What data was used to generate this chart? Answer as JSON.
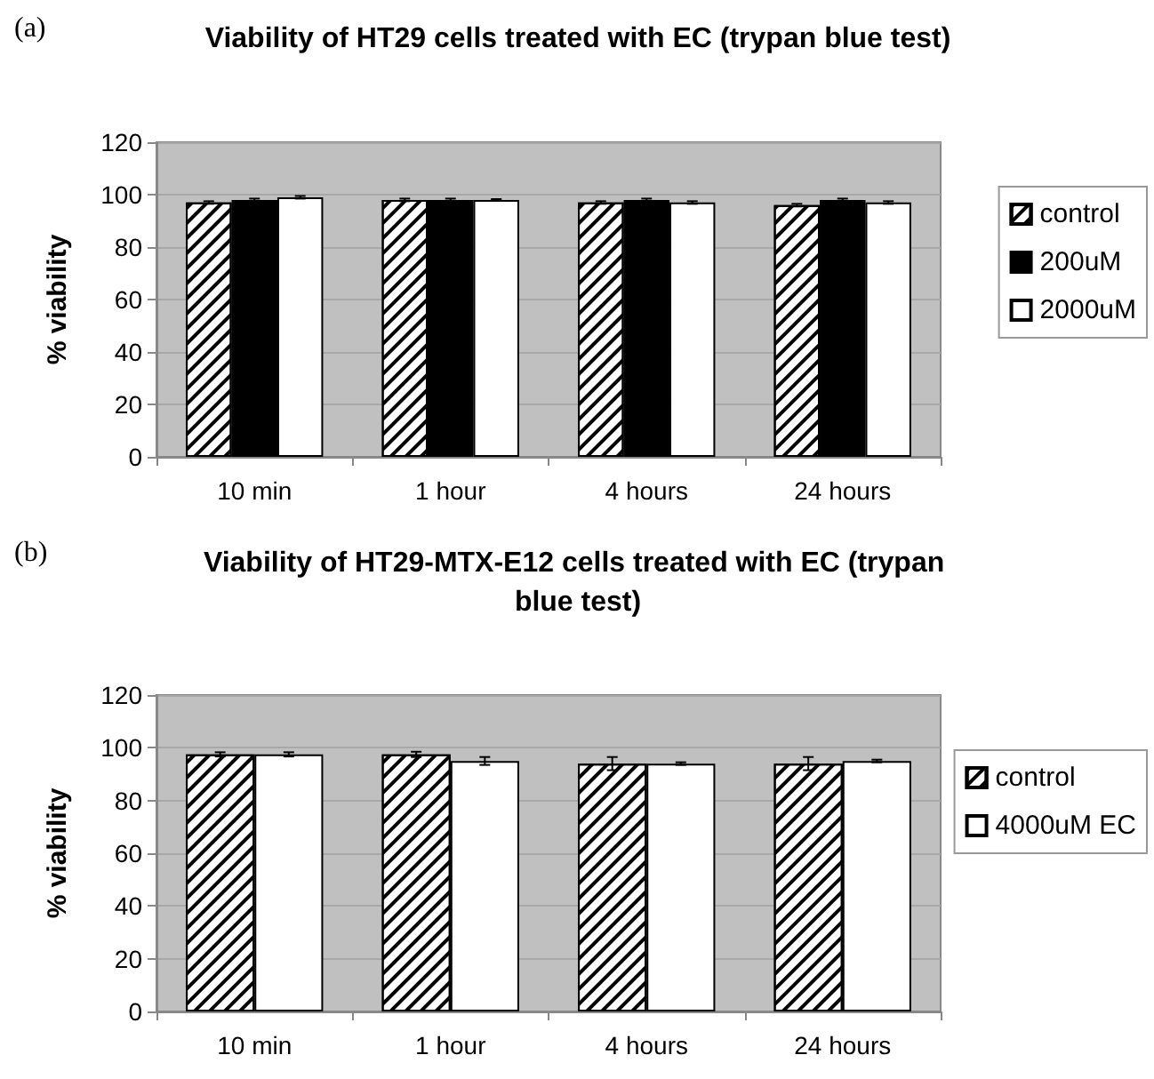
{
  "chart_data": [
    {
      "type": "bar",
      "title": "Viability of HT29 cells treated with EC (trypan blue test)",
      "annotations": [
        "(a)"
      ],
      "ylabel": "% viability",
      "categories": [
        "10 min",
        "1 hour",
        "4 hours",
        "24 hours"
      ],
      "series": [
        {
          "name": "control",
          "color": "#ffffff",
          "values": [
            97,
            98,
            97,
            96
          ],
          "errors": [
            0.5,
            0.5,
            0.5,
            0.5
          ]
        },
        {
          "name": "200uM",
          "color": "#000000",
          "values": [
            98,
            98,
            98,
            98
          ],
          "errors": [
            0.5,
            0.5,
            0.5,
            0.5
          ]
        },
        {
          "name": "2000uM",
          "color": "#ffffff",
          "values": [
            99,
            98,
            97,
            97
          ],
          "errors": [
            0.5,
            0.3,
            0.5,
            0.5
          ]
        }
      ],
      "ylim": [
        0,
        120
      ],
      "yticks": [
        0,
        20,
        40,
        60,
        80,
        100,
        120
      ],
      "grid": "y",
      "legend": "right"
    },
    {
      "type": "bar",
      "title": "Viability of HT29-MTX-E12 cells treated with EC (trypan blue test)",
      "annotations": [
        "(b)"
      ],
      "ylabel": "% viability",
      "categories": [
        "10 min",
        "1 hour",
        "4 hours",
        "24 hours"
      ],
      "series": [
        {
          "name": "control",
          "color": "#ffffff",
          "values": [
            97.5,
            97.5,
            94,
            94
          ],
          "errors": [
            0.8,
            1,
            2.5,
            2.5
          ]
        },
        {
          "name": "4000uM EC",
          "color": "#ffffff",
          "values": [
            97.5,
            95,
            94,
            95
          ],
          "errors": [
            0.8,
            1.5,
            0.5,
            0.5
          ]
        }
      ],
      "ylim": [
        0,
        120
      ],
      "yticks": [
        0,
        20,
        40,
        60,
        80,
        100,
        120
      ],
      "grid": "y",
      "legend": "right"
    }
  ]
}
